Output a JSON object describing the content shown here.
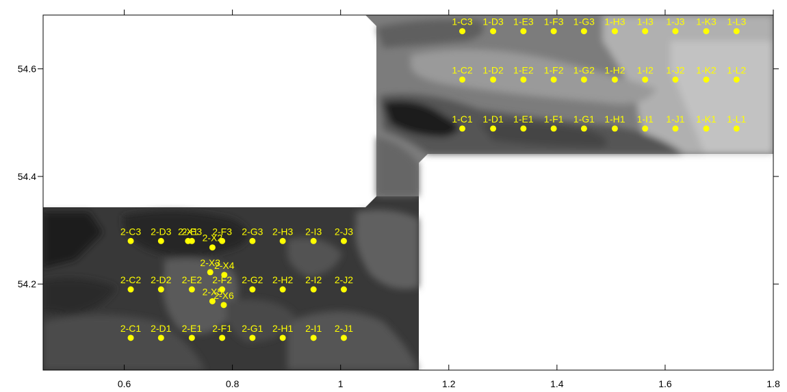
{
  "chart_data": {
    "type": "scatter",
    "title": "",
    "xlabel": "",
    "ylabel": "",
    "xlim": [
      0.45,
      1.8
    ],
    "ylim": [
      54.04,
      54.7
    ],
    "x_ticks": [
      0.6,
      0.8,
      1.0,
      1.2,
      1.4,
      1.6,
      1.8
    ],
    "x_tick_labels": [
      "0.6",
      "0.8",
      "1",
      "1.2",
      "1.4",
      "1.6",
      "1.8"
    ],
    "y_ticks": [
      54.2,
      54.4,
      54.6
    ],
    "y_tick_labels": [
      "54.2",
      "54.4",
      "54.6"
    ],
    "grid": false,
    "background": "grayscale filled contour map",
    "marker_color": "#ffff00",
    "label_color": "#ffff00",
    "points": [
      {
        "label": "1-C3",
        "x": 1.225,
        "y": 54.67
      },
      {
        "label": "1-D3",
        "x": 1.282,
        "y": 54.67
      },
      {
        "label": "1-E3",
        "x": 1.338,
        "y": 54.67
      },
      {
        "label": "1-F3",
        "x": 1.394,
        "y": 54.67
      },
      {
        "label": "1-G3",
        "x": 1.45,
        "y": 54.67
      },
      {
        "label": "1-H3",
        "x": 1.507,
        "y": 54.67
      },
      {
        "label": "1-I3",
        "x": 1.563,
        "y": 54.67
      },
      {
        "label": "1-J3",
        "x": 1.619,
        "y": 54.67
      },
      {
        "label": "1-K3",
        "x": 1.676,
        "y": 54.67
      },
      {
        "label": "1-L3",
        "x": 1.732,
        "y": 54.67
      },
      {
        "label": "1-C2",
        "x": 1.225,
        "y": 54.58
      },
      {
        "label": "1-D2",
        "x": 1.282,
        "y": 54.58
      },
      {
        "label": "1-E2",
        "x": 1.338,
        "y": 54.58
      },
      {
        "label": "1-F2",
        "x": 1.394,
        "y": 54.58
      },
      {
        "label": "1-G2",
        "x": 1.45,
        "y": 54.58
      },
      {
        "label": "1-H2",
        "x": 1.507,
        "y": 54.58
      },
      {
        "label": "1-I2",
        "x": 1.563,
        "y": 54.58
      },
      {
        "label": "1-J2",
        "x": 1.619,
        "y": 54.58
      },
      {
        "label": "1-K2",
        "x": 1.676,
        "y": 54.58
      },
      {
        "label": "1-L2",
        "x": 1.732,
        "y": 54.58
      },
      {
        "label": "1-C1",
        "x": 1.225,
        "y": 54.489
      },
      {
        "label": "1-D1",
        "x": 1.282,
        "y": 54.489
      },
      {
        "label": "1-E1",
        "x": 1.338,
        "y": 54.489
      },
      {
        "label": "1-F1",
        "x": 1.394,
        "y": 54.489
      },
      {
        "label": "1-G1",
        "x": 1.45,
        "y": 54.489
      },
      {
        "label": "1-H1",
        "x": 1.507,
        "y": 54.489
      },
      {
        "label": "1-I1",
        "x": 1.563,
        "y": 54.489
      },
      {
        "label": "1-J1",
        "x": 1.619,
        "y": 54.489
      },
      {
        "label": "1-K1",
        "x": 1.676,
        "y": 54.489
      },
      {
        "label": "1-L1",
        "x": 1.732,
        "y": 54.489
      },
      {
        "label": "2-C3",
        "x": 0.612,
        "y": 54.28
      },
      {
        "label": "2-D3",
        "x": 0.668,
        "y": 54.28
      },
      {
        "label": "2-E3",
        "x": 0.725,
        "y": 54.28
      },
      {
        "label": "2-X1",
        "x": 0.718,
        "y": 54.28
      },
      {
        "label": "2-F3",
        "x": 0.781,
        "y": 54.28
      },
      {
        "label": "2-G3",
        "x": 0.837,
        "y": 54.28
      },
      {
        "label": "2-H3",
        "x": 0.893,
        "y": 54.28
      },
      {
        "label": "2-I3",
        "x": 0.95,
        "y": 54.28
      },
      {
        "label": "2-J3",
        "x": 1.006,
        "y": 54.28
      },
      {
        "label": "2-X2",
        "x": 0.763,
        "y": 54.268
      },
      {
        "label": "2-X3",
        "x": 0.759,
        "y": 54.222
      },
      {
        "label": "2-X4",
        "x": 0.785,
        "y": 54.217
      },
      {
        "label": "2-C2",
        "x": 0.612,
        "y": 54.19
      },
      {
        "label": "2-D2",
        "x": 0.668,
        "y": 54.19
      },
      {
        "label": "2-E2",
        "x": 0.725,
        "y": 54.19
      },
      {
        "label": "2-F2",
        "x": 0.781,
        "y": 54.19
      },
      {
        "label": "2-G2",
        "x": 0.837,
        "y": 54.19
      },
      {
        "label": "2-H2",
        "x": 0.893,
        "y": 54.19
      },
      {
        "label": "2-I2",
        "x": 0.95,
        "y": 54.19
      },
      {
        "label": "2-J2",
        "x": 1.006,
        "y": 54.19
      },
      {
        "label": "2-X5",
        "x": 0.763,
        "y": 54.168
      },
      {
        "label": "2-X6",
        "x": 0.784,
        "y": 54.161
      },
      {
        "label": "2-C1",
        "x": 0.612,
        "y": 54.1
      },
      {
        "label": "2-D1",
        "x": 0.668,
        "y": 54.1
      },
      {
        "label": "2-E1",
        "x": 0.725,
        "y": 54.1
      },
      {
        "label": "2-F1",
        "x": 0.781,
        "y": 54.1
      },
      {
        "label": "2-G1",
        "x": 0.837,
        "y": 54.1
      },
      {
        "label": "2-H1",
        "x": 0.893,
        "y": 54.1
      },
      {
        "label": "2-I1",
        "x": 0.95,
        "y": 54.1
      },
      {
        "label": "2-J1",
        "x": 1.006,
        "y": 54.1
      }
    ]
  }
}
